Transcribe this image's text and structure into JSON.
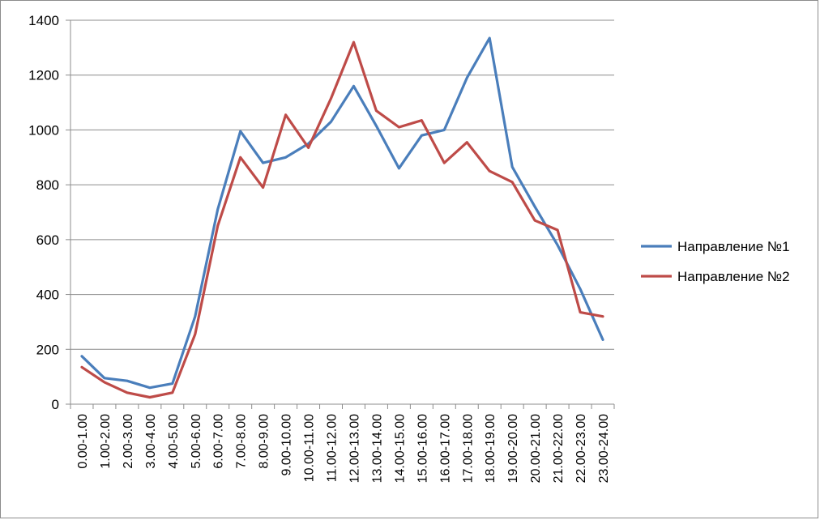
{
  "chart_data": {
    "type": "line",
    "title": "",
    "xlabel": "",
    "ylabel": "",
    "categories": [
      "0.00-1.00",
      "1.00-2.00",
      "2.00-3.00",
      "3.00-4.00",
      "4.00-5.00",
      "5.00-6.00",
      "6.00-7.00",
      "7.00-8.00",
      "8.00-9.00",
      "9.00-10.00",
      "10.00-11.00",
      "11.00-12.00",
      "12.00-13.00",
      "13.00-14.00",
      "14.00-15.00",
      "15.00-16.00",
      "16.00-17.00",
      "17.00-18.00",
      "18.00-19.00",
      "19.00-20.00",
      "20.00-21.00",
      "21.00-22.00",
      "22.00-23.00",
      "23.00-24.00"
    ],
    "ylim": [
      0,
      1400
    ],
    "yticks": [
      0,
      200,
      400,
      600,
      800,
      1000,
      1200,
      1400
    ],
    "grid": "horizontal",
    "legend_position": "right",
    "series": [
      {
        "name": "Направление №1",
        "color": "#4a7ebb",
        "values": [
          175,
          95,
          85,
          60,
          75,
          320,
          710,
          995,
          880,
          900,
          950,
          1030,
          1160,
          1015,
          860,
          980,
          1000,
          1190,
          1335,
          865,
          720,
          580,
          420,
          235
        ]
      },
      {
        "name": "Направление №2",
        "color": "#be4b48",
        "values": [
          135,
          80,
          42,
          25,
          42,
          255,
          650,
          900,
          790,
          1055,
          935,
          1115,
          1320,
          1070,
          1010,
          1035,
          880,
          955,
          850,
          810,
          670,
          635,
          335,
          320
        ]
      }
    ]
  }
}
